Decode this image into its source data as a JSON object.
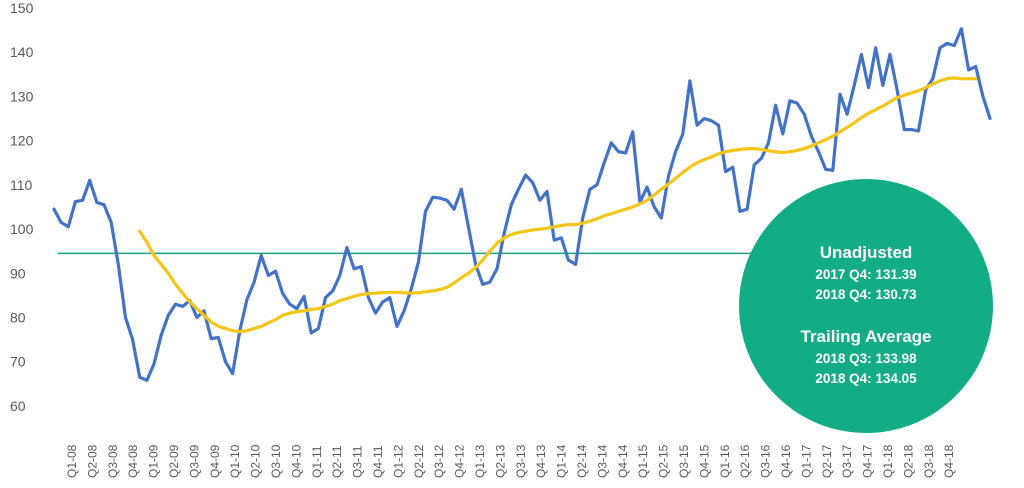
{
  "chart_data": {
    "type": "line",
    "title": "",
    "xlabel": "",
    "ylabel": "",
    "ylim": [
      55,
      150
    ],
    "yticks": [
      60,
      70,
      80,
      90,
      100,
      110,
      120,
      130,
      140,
      150
    ],
    "grid": false,
    "x_labels": [
      "Q1-08",
      "Q2-08",
      "Q3-08",
      "Q4-08",
      "Q1-09",
      "Q2-09",
      "Q3-09",
      "Q4-09",
      "Q1-10",
      "Q2-10",
      "Q3-10",
      "Q4-10",
      "Q1-11",
      "Q2-11",
      "Q3-11",
      "Q4-11",
      "Q1-12",
      "Q2-12",
      "Q3-12",
      "Q4-12",
      "Q1-13",
      "Q2-13",
      "Q3-13",
      "Q4-13",
      "Q1-14",
      "Q2-14",
      "Q3-14",
      "Q4-14",
      "Q1-15",
      "Q2-15",
      "Q3-15",
      "Q4-15",
      "Q1-16",
      "Q2-16",
      "Q3-16",
      "Q4-16",
      "Q1-17",
      "Q2-17",
      "Q3-17",
      "Q4-17",
      "Q1-18",
      "Q2-18",
      "Q3-18",
      "Q4-18"
    ],
    "series": [
      {
        "name": "",
        "color": "#4472C4",
        "values": [
          104.5,
          101.5,
          100.5,
          106.2,
          106.5,
          111.0,
          106.0,
          105.5,
          101.5,
          92.0,
          80.0,
          75.0,
          66.5,
          65.8,
          69.5,
          76.0,
          80.5,
          83.0,
          82.5,
          83.8,
          80.0,
          81.5,
          75.2,
          75.5,
          70.0,
          67.3,
          77.0,
          84.0,
          88.0,
          94.0,
          89.5,
          90.5,
          85.5,
          83.0,
          82.0,
          84.8,
          76.5,
          77.5,
          84.5,
          86.0,
          89.5,
          95.8,
          91.0,
          91.5,
          84.5,
          81.0,
          83.5,
          84.5,
          78.0,
          81.5,
          86.5,
          92.5,
          104.0,
          107.2,
          107.0,
          106.5,
          104.5,
          109.0,
          100.5,
          92.0,
          87.5,
          88.0,
          91.0,
          99.0,
          105.5,
          109.0,
          112.2,
          110.5,
          106.5,
          108.5,
          97.5,
          98.0,
          93.0,
          92.0,
          102.5,
          109.0,
          110.0,
          115.0,
          119.5,
          117.5,
          117.2,
          122.0,
          106.0,
          109.5,
          105.0,
          102.5,
          112.0,
          117.5,
          121.5,
          133.5,
          123.5,
          125.0,
          124.5,
          123.5,
          113.0,
          114.0,
          104.0,
          104.5,
          114.5,
          116.0,
          119.5,
          128.0,
          121.5,
          129.0,
          128.5,
          126.0,
          121.0,
          117.5,
          113.5,
          113.3,
          130.5,
          126.0,
          132.5,
          139.5,
          132.0,
          141.0,
          132.5,
          139.5,
          131.5,
          122.5,
          122.5,
          122.2,
          131.5,
          134.0,
          141.0,
          142.0,
          141.5,
          145.3,
          136.0,
          136.8,
          130.0,
          125.0
        ]
      },
      {
        "name": "",
        "color": "#F5C518",
        "start_index": 12,
        "values": [
          99.5,
          97.0,
          94.0,
          92.0,
          90.0,
          87.5,
          85.5,
          83.5,
          82.0,
          80.5,
          79.0,
          78.0,
          77.5,
          77.0,
          76.8,
          77.0,
          77.5,
          78.0,
          78.8,
          79.5,
          80.5,
          81.0,
          81.3,
          81.5,
          81.8,
          82.0,
          82.5,
          83.0,
          83.8,
          84.3,
          84.8,
          85.2,
          85.4,
          85.5,
          85.6,
          85.7,
          85.7,
          85.6,
          85.5,
          85.6,
          85.8,
          86.0,
          86.3,
          86.8,
          87.8,
          89.0,
          90.0,
          91.3,
          93.0,
          95.0,
          96.8,
          98.0,
          98.8,
          99.2,
          99.5,
          99.8,
          100.0,
          100.2,
          100.5,
          100.8,
          101.0,
          101.0,
          101.3,
          101.8,
          102.3,
          103.0,
          103.5,
          104.0,
          104.5,
          105.0,
          105.7,
          106.5,
          107.7,
          109.0,
          110.2,
          111.5,
          112.8,
          114.0,
          115.0,
          115.7,
          116.3,
          117.0,
          117.5,
          117.8,
          118.0,
          118.2,
          118.2,
          118.0,
          117.7,
          117.5,
          117.3,
          117.5,
          117.8,
          118.2,
          118.8,
          119.5,
          120.2,
          121.0,
          122.0,
          123.0,
          124.0,
          125.2,
          126.2,
          127.0,
          127.8,
          128.8,
          129.7,
          130.3,
          130.8,
          131.3,
          132.0,
          132.8,
          133.5,
          134.0,
          134.2,
          134.0,
          134.0,
          134.0
        ]
      }
    ],
    "reference_line": {
      "value": 94.5,
      "color": "#17A27D"
    },
    "annotations": {
      "circle_color": "#12AD85",
      "unadjusted_title": "Unadjusted",
      "unadjusted_line1": "2017 Q4: 131.39",
      "unadjusted_line2": "2018 Q4: 130.73",
      "trailing_title": "Trailing Average",
      "trailing_line1": "2018 Q3: 133.98",
      "trailing_line2": "2018 Q4: 134.05"
    }
  }
}
